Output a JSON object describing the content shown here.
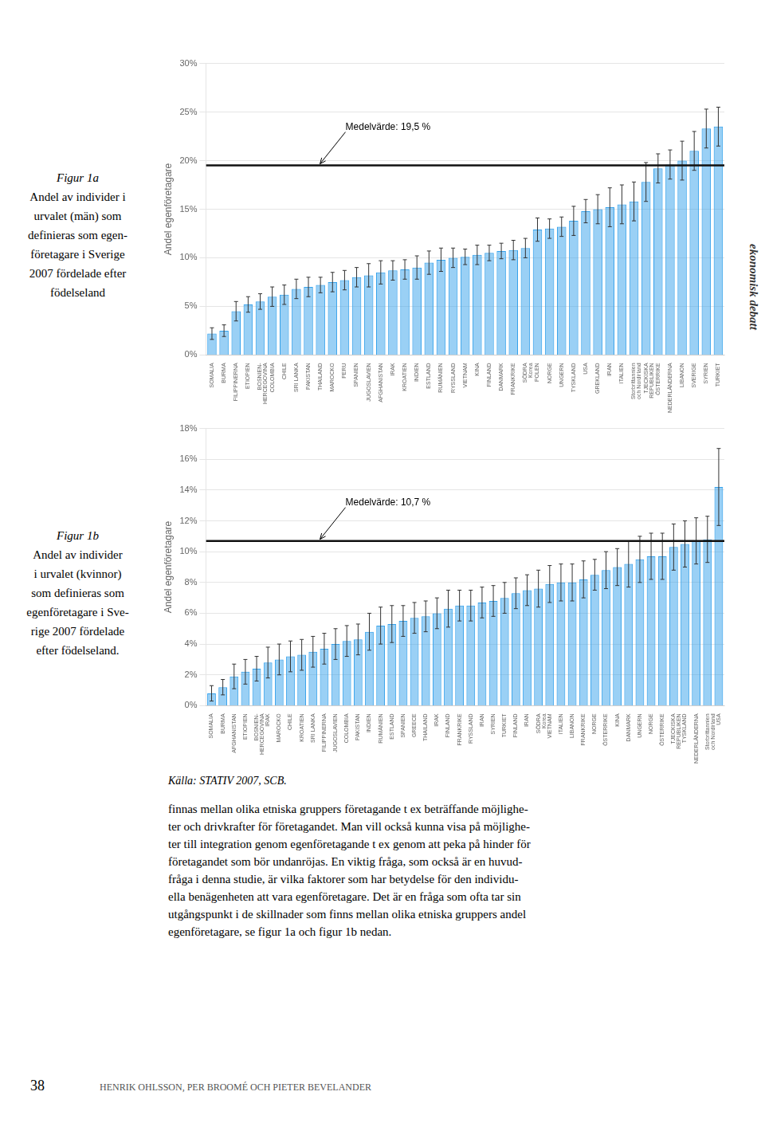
{
  "chart_data": [
    {
      "type": "bar",
      "caption": [
        "Figur 1a",
        "Andel av individer i",
        "urvalet (män) som",
        "definieras som egen-",
        "företagare i Sverige",
        "2007 fördelade efter",
        "födelseland"
      ],
      "ylabel": "Andel egenföretagare",
      "categories": [
        "SOMALIA",
        "BURMA",
        "FILIPPINERNA",
        "ETIOPIEN",
        "BOSNIEN-\nHERCEGOVINA",
        "COLOMBIA",
        "CHILE",
        "SRI LANKA",
        "PAKISTAN",
        "THAILAND",
        "MAROCKO",
        "PERU",
        "SPANIEN",
        "JUGOSLAVIEN",
        "AFGHANISTAN",
        "IRAK",
        "KROATIEN",
        "INDIEN",
        "ESTLAND",
        "RUMÄNIEN",
        "RYSSLAND",
        "VIETNAM",
        "KINA",
        "FINLAND",
        "DANMARK",
        "FRANKRIKE",
        "SÖDRA\nKorea",
        "POLEN",
        "NORGE",
        "UNGERN",
        "TYSKLAND",
        "USA",
        "GREKLAND",
        "IRAN",
        "ITALIEN",
        "Storbrittannien\noch Nordirland",
        "TJECKISKA\nREPUBLIKEN",
        "ÖSTERRIKE",
        "NEDERLÄNDERNA",
        "LIBANON",
        "SVERIGE",
        "SYRIEN",
        "TURKIET"
      ],
      "values": [
        0.022,
        0.025,
        0.045,
        0.052,
        0.055,
        0.06,
        0.062,
        0.068,
        0.07,
        0.072,
        0.075,
        0.077,
        0.08,
        0.082,
        0.085,
        0.087,
        0.088,
        0.09,
        0.095,
        0.098,
        0.1,
        0.101,
        0.103,
        0.105,
        0.107,
        0.108,
        0.11,
        0.129,
        0.13,
        0.132,
        0.138,
        0.148,
        0.15,
        0.152,
        0.155,
        0.158,
        0.178,
        0.192,
        0.196,
        0.2,
        0.21,
        0.233,
        0.235
      ],
      "errors": [
        0.006,
        0.006,
        0.01,
        0.008,
        0.008,
        0.01,
        0.01,
        0.01,
        0.01,
        0.008,
        0.01,
        0.01,
        0.01,
        0.012,
        0.012,
        0.01,
        0.01,
        0.012,
        0.012,
        0.012,
        0.01,
        0.008,
        0.01,
        0.008,
        0.008,
        0.01,
        0.01,
        0.012,
        0.01,
        0.01,
        0.015,
        0.012,
        0.015,
        0.02,
        0.02,
        0.02,
        0.02,
        0.015,
        0.015,
        0.02,
        0.02,
        0.02,
        0.02
      ],
      "mean": 0.195,
      "mean_label": "Medelvärde: 19,5 %",
      "ylim": [
        0,
        0.3
      ],
      "yticks": [
        {
          "value": 0.0,
          "label": "0%"
        },
        {
          "value": 0.05,
          "label": "5%"
        },
        {
          "value": 0.1,
          "label": "10%"
        },
        {
          "value": 0.15,
          "label": "15%"
        },
        {
          "value": 0.2,
          "label": "20%"
        },
        {
          "value": 0.25,
          "label": "25%"
        },
        {
          "value": 0.3,
          "label": "30%"
        }
      ],
      "grid": true
    },
    {
      "type": "bar",
      "caption": [
        "Figur 1b",
        "Andel av individer",
        "i urvalet (kvinnor)",
        "som definieras som",
        "egenföretagare i Sve-",
        "rige 2007 fördelade",
        "efter födelseland."
      ],
      "ylabel": "Andel egenföretagare",
      "categories": [
        "SOMALIA",
        "BURMA",
        "AFGHANISTAN",
        "ETIOPIEN",
        "BOSNIEN-\nHERCEGOVINA",
        "IRAK",
        "MAROCKO",
        "CHILE",
        "KROATIEN",
        "SRI LANKA",
        "FILIPPINERNA",
        "JUGOSLAVIEN",
        "COLOMBIA",
        "PAKISTAN",
        "INDIEN",
        "RUMÄNIEN",
        "ESTLAND",
        "SPANIEN",
        "GREECE",
        "THAILAND",
        "IRAK",
        "FINLAND",
        "FRANKRIKE",
        "RYSSLAND",
        "IRAN",
        "SYRIEN",
        "TURKIET",
        "FINLAND",
        "IRAN",
        "SÖDRA\nKorea",
        "VIETNAM",
        "ITALIEN",
        "LIBANON",
        "FRANKRIKE",
        "NORGE",
        "ÖSTERRIKE",
        "KINA",
        "DANMARK",
        "UNGERN",
        "NORGE",
        "ÖSTERRIKE",
        "TJECKISKA\nREPUBLIKEN",
        "TYSKLAND",
        "NEDERLÄNDERNA",
        "Storbrittannien\noch Nordirland",
        "USA"
      ],
      "values": [
        0.008,
        0.012,
        0.019,
        0.022,
        0.024,
        0.028,
        0.03,
        0.032,
        0.033,
        0.035,
        0.037,
        0.04,
        0.042,
        0.043,
        0.048,
        0.052,
        0.053,
        0.055,
        0.057,
        0.058,
        0.06,
        0.063,
        0.065,
        0.065,
        0.067,
        0.068,
        0.07,
        0.073,
        0.075,
        0.076,
        0.079,
        0.08,
        0.08,
        0.082,
        0.085,
        0.088,
        0.09,
        0.092,
        0.095,
        0.097,
        0.097,
        0.103,
        0.105,
        0.107,
        0.108,
        0.142
      ],
      "errors": [
        0.005,
        0.005,
        0.008,
        0.008,
        0.008,
        0.01,
        0.01,
        0.01,
        0.01,
        0.01,
        0.01,
        0.01,
        0.01,
        0.01,
        0.012,
        0.012,
        0.012,
        0.01,
        0.01,
        0.01,
        0.01,
        0.012,
        0.01,
        0.01,
        0.01,
        0.01,
        0.01,
        0.01,
        0.01,
        0.012,
        0.012,
        0.012,
        0.012,
        0.012,
        0.01,
        0.012,
        0.012,
        0.015,
        0.015,
        0.015,
        0.015,
        0.015,
        0.015,
        0.015,
        0.015,
        0.025
      ],
      "mean": 0.107,
      "mean_label": "Medelvärde: 10,7 %",
      "ylim": [
        0,
        0.18
      ],
      "yticks": [
        {
          "value": 0.0,
          "label": "0%"
        },
        {
          "value": 0.02,
          "label": "2%"
        },
        {
          "value": 0.04,
          "label": "4%"
        },
        {
          "value": 0.06,
          "label": "6%"
        },
        {
          "value": 0.08,
          "label": "8%"
        },
        {
          "value": 0.1,
          "label": "10%"
        },
        {
          "value": 0.12,
          "label": "12%"
        },
        {
          "value": 0.14,
          "label": "14%"
        },
        {
          "value": 0.16,
          "label": "16%"
        },
        {
          "value": 0.18,
          "label": "18%"
        }
      ],
      "grid": true
    }
  ],
  "page": {
    "side_text": "ekonomisk debatt",
    "source": "Källa: STATIV 2007, SCB.",
    "body": [
      "finnas mellan olika etniska gruppers företagande t ex beträffande möjlighe-",
      "ter och drivkrafter för företagandet. Man vill också kunna visa på möjlighe-",
      "ter till integration genom egenföretagande t ex genom att peka på hinder för",
      "företagandet som bör undanröjas. En viktig fråga, som också är en huvud-",
      "fråga i denna studie, är vilka faktorer som har betydelse för den individu-",
      "ella benägenheten att vara egenföretagare. Det är en fråga som ofta tar sin",
      "utgångspunkt i de skillnader som finns mellan olika etniska gruppers andel",
      "egenföretagare, se figur 1a och figur 1b nedan."
    ],
    "page_number": "38",
    "footer": "HENRIK OHLSSON, PER BROOMÉ OCH PIETER BEVELANDER"
  }
}
